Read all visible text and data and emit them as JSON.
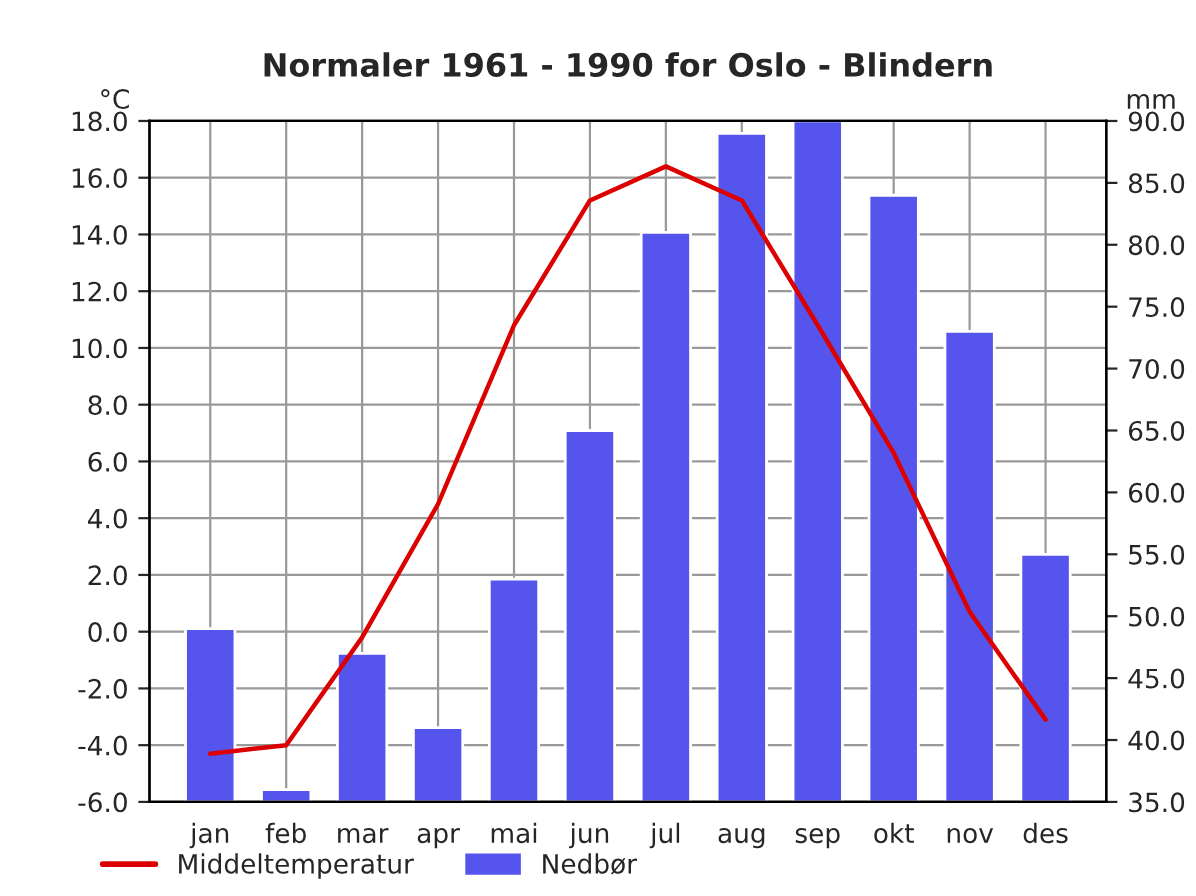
{
  "chart_data": {
    "type": "bar",
    "title": "Normaler 1961 - 1990 for Oslo - Blindern",
    "ylabel": "°C",
    "y2label": "mm",
    "categories": [
      "jan",
      "feb",
      "mar",
      "apr",
      "mai",
      "jun",
      "jul",
      "aug",
      "sep",
      "okt",
      "nov",
      "des"
    ],
    "series": [
      {
        "name": "Middeltemperatur",
        "type": "line",
        "color": "#dd0000",
        "values": [
          -4.3,
          -4.0,
          -0.2,
          4.5,
          10.8,
          15.2,
          16.4,
          15.2,
          10.8,
          6.3,
          0.7,
          -3.1
        ]
      },
      {
        "name": "Nedbør",
        "axis": "y2",
        "color": "#5555ee",
        "values": [
          49,
          36,
          47,
          41,
          53,
          65,
          81,
          89,
          90,
          84,
          73,
          55
        ]
      }
    ],
    "ylim": [
      -6,
      18
    ],
    "yticks": [
      {
        "value": -6,
        "label": "-6.0"
      },
      {
        "value": -4,
        "label": "-4.0"
      },
      {
        "value": -2,
        "label": "-2.0"
      },
      {
        "value": 0,
        "label": "0.0"
      },
      {
        "value": 2,
        "label": "2.0"
      },
      {
        "value": 4,
        "label": "4.0"
      },
      {
        "value": 6,
        "label": "6.0"
      },
      {
        "value": 8,
        "label": "8.0"
      },
      {
        "value": 10,
        "label": "10.0"
      },
      {
        "value": 12,
        "label": "12.0"
      },
      {
        "value": 14,
        "label": "14.0"
      },
      {
        "value": 16,
        "label": "16.0"
      },
      {
        "value": 18,
        "label": "18.0"
      }
    ],
    "y2lim": [
      35,
      90
    ],
    "y2ticks": [
      {
        "value": 35,
        "label": "35.0"
      },
      {
        "value": 40,
        "label": "40.0"
      },
      {
        "value": 45,
        "label": "45.0"
      },
      {
        "value": 50,
        "label": "50.0"
      },
      {
        "value": 55,
        "label": "55.0"
      },
      {
        "value": 60,
        "label": "60.0"
      },
      {
        "value": 65,
        "label": "65.0"
      },
      {
        "value": 70,
        "label": "70.0"
      },
      {
        "value": 75,
        "label": "75.0"
      },
      {
        "value": 80,
        "label": "80.0"
      },
      {
        "value": 85,
        "label": "85.0"
      },
      {
        "value": 90,
        "label": "90.0"
      }
    ],
    "grid": true,
    "legend": "bottom"
  }
}
